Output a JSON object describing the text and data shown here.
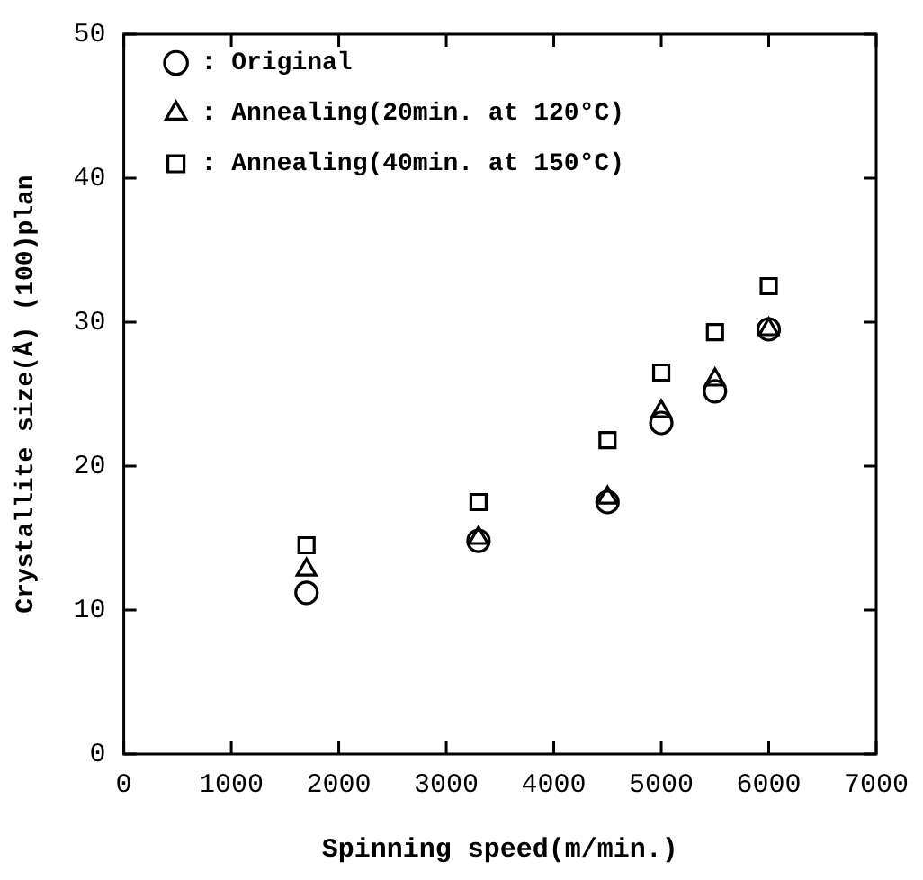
{
  "chart_data": {
    "type": "scatter",
    "xlabel": "Spinning speed(m/min.)",
    "ylabel": "Crystallite size(Å) (100)plan",
    "x": [
      1700,
      3300,
      4500,
      5000,
      5500,
      6000
    ],
    "series": [
      {
        "name": ": Original",
        "color": "#000000",
        "marker": "circle",
        "values": [
          11.2,
          14.8,
          17.5,
          23,
          25.2,
          29.5
        ]
      },
      {
        "name": ": Annealing(20min. at 120°C)",
        "color": "#000000",
        "marker": "triangle",
        "values": [
          12.8,
          15,
          17.8,
          23.8,
          26,
          29.5
        ]
      },
      {
        "name": ": Annealing(40min. at 150°C)",
        "color": "#000000",
        "marker": "square",
        "values": [
          14.5,
          17.5,
          21.8,
          26.5,
          29.3,
          32.5
        ]
      }
    ],
    "xlim": [
      0,
      7000
    ],
    "xticks": [
      0,
      1000,
      2000,
      3000,
      4000,
      5000,
      6000,
      7000
    ],
    "ylim": [
      0,
      50
    ],
    "yticks": [
      0,
      10,
      20,
      30,
      40,
      50
    ],
    "grid": false,
    "legend": "top left"
  }
}
